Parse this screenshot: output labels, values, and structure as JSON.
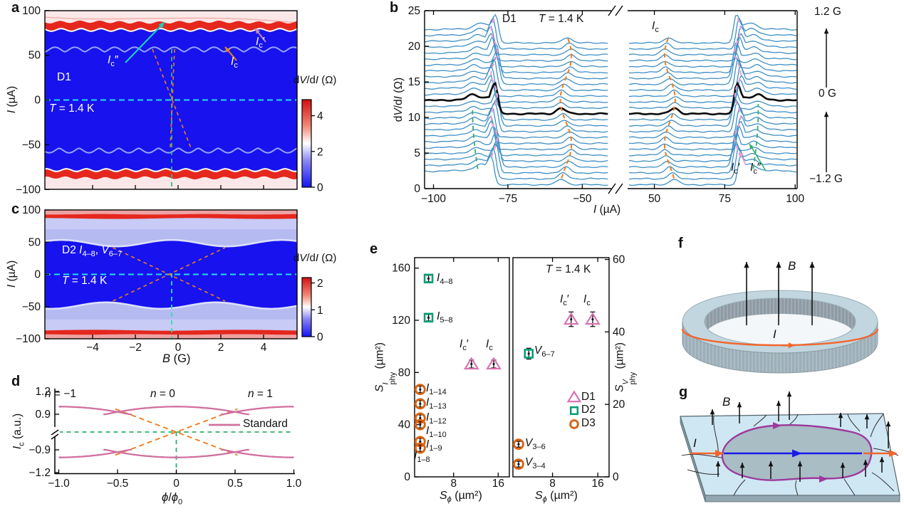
{
  "figure_colors": {
    "curve_blue": "#3f8fc5",
    "bold_curve": "#0a0a0a",
    "dashed_pink": "#f09ad2",
    "dashed_orange": "#ee7d18",
    "dashed_green": "#2fae6d",
    "dashed_cyan": "#25dfe2",
    "dashed_teal_green": "#2cbc85",
    "map_deep_blue": "#1712ee",
    "map_red": "#e5271d",
    "map_lavender": "#b5baf0",
    "rose_curve": "#d0709f",
    "marker_D1_pink": "#d874b2",
    "marker_D2_green": "#009e73",
    "marker_D3_orange": "#d96312",
    "arrow_teal": "#17cfc0",
    "arrow_orange": "#e8821e",
    "arrow_purple": "#b98ab4",
    "current_orange": "#f2662c",
    "loop_purple": "#9c3a9c",
    "current_blue": "#1a1ae8"
  },
  "labels_html": {
    "panel_a": {
      "letter": "a",
      "device": "D1",
      "temp": "<i>T</i> = 1.4 K",
      "ic2": "<i>I</i><sub>c</sub>″",
      "ic": "<i>I</i><sub>c</sub>",
      "ic1": "<i>I</i><sub>c</sub>′",
      "ylabel": "<i>I</i> (µA)",
      "cb_label": "d<i>V</i>/d<i>I</i> (Ω)"
    },
    "panel_b": {
      "letter": "b",
      "device": "D1",
      "temp": "<i>T</i> = 1.4 K",
      "ic": "<i>I</i><sub>c</sub>",
      "ic1": "<i>I</i><sub>c</sub>′",
      "ic2": "<i>I</i><sub>c</sub>″",
      "ylabel": "d<i>V</i>/d<i>I</i> (Ω)",
      "xlabel": "<i>I</i> (µA)",
      "field_top": "1.2 G",
      "field_mid": "0 G",
      "field_bottom": "−1.2 G"
    },
    "panel_c": {
      "letter": "c",
      "device_line": "D2 <i>I</i><sub>4–8</sub>, <i>V</i><sub>6–7</sub>",
      "temp": "<i>T</i> = 1.4 K",
      "ylabel": "<i>I</i> (µA)",
      "xlabel": "<i>B</i> (G)",
      "cb_label": "d<i>V</i>/d<i>I</i> (Ω)"
    },
    "panel_d": {
      "letter": "d",
      "ylabel": "<i>I</i><sub>c</sub> (a.u.)",
      "xlabel": "<i>ϕ</i>/<i>ϕ</i><sub>0</sub>",
      "n_m1": "<i>n</i> = −1",
      "n_0": "<i>n</i> = 0",
      "n_1": "<i>n</i> = 1",
      "legend_standard": "Standard"
    },
    "panel_e": {
      "letter": "e",
      "temp": "<i>T</i> = 1.4 K",
      "ylabel_left": "<i>S</i><span class=\"ss\"><span>I</span><span>phy</span></span> (µm²)",
      "ylabel_right": "<i>S</i><span class=\"ss\"><span>V</span><span>phy</span></span> (µm²)",
      "xlabel": "<i>S</i><sub><i>ϕ</i></sub> (µm²)",
      "i48": "<i>I</i><sub>4–8</sub>",
      "i58": "<i>I</i><sub>5–8</sub>",
      "ic1": "<i>I</i><sub>c</sub>′",
      "ic": "<i>I</i><sub>c</sub>",
      "i114": "<i>I</i><sub>1–14</sub>",
      "i113": "<i>I</i><sub>1–13</sub>",
      "i112": "<i>I</i><sub>1–12</sub>",
      "i110": "<i>I</i><sub>1–10</sub>",
      "i19": "<i>I</i><sub>1–9</sub>",
      "i18": "<i>I</i><sub>1–8</sub>",
      "v67": "<i>V</i><sub>6–7</sub>",
      "v36": "<i>V</i><sub>3–6</sub>",
      "v34": "<i>V</i><sub>3–4</sub>",
      "d1": "D1",
      "d2": "D2",
      "d3": "D3"
    },
    "panel_f": {
      "letter": "f",
      "b": "<i>B</i>",
      "i": "<i>I</i>"
    },
    "panel_g": {
      "letter": "g",
      "b": "<i>B</i>",
      "i": "<i>I</i>"
    }
  },
  "chart_data": [
    {
      "panel": "a",
      "type": "heatmap",
      "device": "D1",
      "temperature_K": 1.4,
      "xlabel": "B (G)",
      "ylabel": "I (µA)",
      "xlim": [
        -6.2,
        5.6
      ],
      "ylim": [
        -100,
        100
      ],
      "yticks": [
        100,
        50,
        0,
        -50,
        -100
      ],
      "ytick_labels": [
        "100",
        "50",
        "0",
        "−50",
        "−100"
      ],
      "xticks": [
        -4,
        -2,
        0,
        2,
        4
      ],
      "colorbar": {
        "label": "dV/dI (Ω)",
        "ticks": [
          4,
          2,
          0
        ],
        "tick_labels": [
          "4",
          "2",
          "0"
        ],
        "range": [
          0,
          4.9
        ]
      },
      "features": {
        "critical_current_uA": 57,
        "oscillation_period_G": 0.93,
        "oscillation_amp_uA": 5,
        "second_transition_uA": 78,
        "red_band_uA": [
          79,
          87
        ],
        "dashed_cross_B_G": -0.3
      },
      "annotations": [
        "Ic″",
        "Ic",
        "Ic′"
      ]
    },
    {
      "panel": "b",
      "type": "line",
      "device": "D1",
      "temperature_K": 1.4,
      "xlabel": "I (µA)",
      "ylabel": "dV/dI (Ω)",
      "xticks": [
        -100,
        -75,
        -50,
        50,
        75,
        100
      ],
      "xtick_labels": [
        "−100",
        "−75",
        "−50",
        "50",
        "75",
        "100"
      ],
      "yticks": [
        0,
        5,
        10,
        15,
        20,
        25
      ],
      "ytick_labels": [
        "0",
        "5",
        "10",
        "15",
        "20",
        "25"
      ],
      "xlim": [
        -103,
        101
      ],
      "ylim": [
        0,
        25
      ],
      "x_break": [
        -41,
        41
      ],
      "field_sweep": {
        "min_G": -1.2,
        "max_G": 1.2,
        "n_curves": 25,
        "bold_field_G": 0,
        "labels": [
          "1.2 G",
          "0 G",
          "−1.2 G"
        ]
      },
      "curve_model": {
        "baseline_start_ohm": 0.55,
        "baseline_step_ohm": 0.83,
        "normal_state_offset_ohm": 1.9,
        "main_peak_uA": 80,
        "main_peak_amp_ohm": 4.2,
        "secondary_peak_uA": 55.5,
        "secondary_peak_amp_ohm": 0.8,
        "shoulder_uA": 84.5,
        "shoulder_amp_ohm": 0.62
      },
      "annotations": [
        "Ic",
        "Ic′",
        "Ic″"
      ]
    },
    {
      "panel": "c",
      "type": "heatmap",
      "device": "D2",
      "contacts": "I4–8, V6–7",
      "temperature_K": 1.4,
      "xlabel": "B (G)",
      "ylabel": "I (µA)",
      "xlim": [
        -6.2,
        5.6
      ],
      "ylim": [
        -100,
        100
      ],
      "xticks": [
        -4,
        -2,
        0,
        2,
        4
      ],
      "xtick_labels": [
        "−4",
        "−2",
        "0",
        "2",
        "4"
      ],
      "yticks": [
        100,
        50,
        0,
        -50,
        -100
      ],
      "ytick_labels": [
        "100",
        "50",
        "0",
        "−50",
        "−100"
      ],
      "colorbar": {
        "label": "dV/dI (Ω)",
        "ticks": [
          2,
          1,
          0
        ],
        "tick_labels": [
          "2",
          "1",
          "0"
        ],
        "range": [
          0,
          2.2
        ]
      },
      "features": {
        "critical_current_uA": 47,
        "modulation_period_G": 5.15,
        "modulation_amp_uA": 5,
        "red_band_uA": [
          87,
          93
        ],
        "dashed_cross_B_G": -0.3
      }
    },
    {
      "panel": "d",
      "type": "line",
      "xlabel": "ϕ/ϕ0",
      "ylabel": "Ic (a.u.)",
      "xticks": [
        -1,
        -0.5,
        0,
        0.5,
        1
      ],
      "xtick_labels": [
        "−1.0",
        "−0.5",
        "0",
        "0.5",
        "1.0"
      ],
      "yticks": [
        1.2,
        0.9,
        -0.9,
        -1.2
      ],
      "ytick_labels": [
        "1.2",
        "0.9",
        "−0.9",
        "−1.2"
      ],
      "y_axis_break_at": 0,
      "lobes": {
        "centers": [
          -1,
          0,
          1
        ],
        "labels": [
          "n = −1",
          "n = 0",
          "n = 1"
        ],
        "peak": 1.0,
        "crossing_level": 0.93,
        "half_width": 0.62,
        "curvature": 0.28
      },
      "legend": [
        {
          "label": "Standard",
          "style": "solid rose line"
        }
      ]
    },
    {
      "panel": "e",
      "subpanel": "left",
      "type": "scatter",
      "xlabel": "Sϕ (µm²)",
      "ylabel": "SIphy (µm²)",
      "xticks": [
        8,
        16
      ],
      "xtick_labels": [
        "8",
        "16"
      ],
      "xlim": [
        1,
        18
      ],
      "yticks": [
        0,
        40,
        80,
        120,
        160
      ],
      "ytick_labels": [
        "0",
        "40",
        "80",
        "120",
        "160"
      ],
      "ylim": [
        0,
        168
      ],
      "series": [
        {
          "name": "D1",
          "marker": "triangle",
          "points": [
            {
              "label": "Ic′",
              "x": 11.2,
              "y": 86.5,
              "err": 3
            },
            {
              "label": "Ic",
              "x": 15.2,
              "y": 86.5,
              "err": 3
            }
          ]
        },
        {
          "name": "D2",
          "marker": "square",
          "points": [
            {
              "label": "I4–8",
              "x": 3.5,
              "y": 152,
              "err": 2.5
            },
            {
              "label": "I5–8",
              "x": 3.5,
              "y": 122,
              "err": 2.5
            }
          ]
        },
        {
          "name": "D3",
          "marker": "circle",
          "points": [
            {
              "label": "I1–14",
              "x": 2,
              "y": 67,
              "err": 2.5
            },
            {
              "label": "I1–13",
              "x": 2,
              "y": 56,
              "err": 2.5
            },
            {
              "label": "I1–12",
              "x": 2,
              "y": 45,
              "err": 2.5
            },
            {
              "label": "I1–10",
              "x": 2,
              "y": 40,
              "err": 2.5
            },
            {
              "label": "I1–9",
              "x": 2,
              "y": 27,
              "err": 2.5
            },
            {
              "label": "I1–8",
              "x": 2,
              "y": 22,
              "err": 2.5
            }
          ]
        }
      ]
    },
    {
      "panel": "e",
      "subpanel": "right",
      "type": "scatter",
      "temperature": "T = 1.4 K",
      "xlabel": "Sϕ (µm²)",
      "ylabel": "SVphy (µm²)",
      "xticks": [
        8,
        16
      ],
      "xtick_labels": [
        "8",
        "16"
      ],
      "xlim": [
        1,
        18
      ],
      "yticks": [
        0,
        20,
        40,
        60
      ],
      "ytick_labels": [
        "0",
        "20",
        "40",
        "60"
      ],
      "ylim": [
        0,
        60.5
      ],
      "series": [
        {
          "name": "D1",
          "marker": "triangle",
          "points": [
            {
              "label": "Ic′",
              "x": 11.3,
              "y": 43.5,
              "err": 2
            },
            {
              "label": "Ic",
              "x": 15.1,
              "y": 43.5,
              "err": 2
            }
          ]
        },
        {
          "name": "D2",
          "marker": "square",
          "points": [
            {
              "label": "V6–7",
              "x": 3.8,
              "y": 34,
              "err": 1.5
            }
          ]
        },
        {
          "name": "D3",
          "marker": "circle",
          "points": [
            {
              "label": "V3–6",
              "x": 2,
              "y": 9,
              "err": 0.8
            },
            {
              "label": "V3–4",
              "x": 2,
              "y": 3.5,
              "err": 0.8
            }
          ]
        }
      ],
      "legend": [
        {
          "name": "D1",
          "marker": "triangle"
        },
        {
          "name": "D2",
          "marker": "square"
        },
        {
          "name": "D3",
          "marker": "circle"
        }
      ]
    }
  ],
  "diagrams": {
    "f": {
      "labels": [
        "B",
        "I"
      ],
      "description": "superconducting ring in perpendicular magnetic field with circulating current"
    },
    "g": {
      "labels": [
        "B",
        "I"
      ],
      "description": "flake with trapped vortices, applied current and phase-coherent loop"
    }
  }
}
